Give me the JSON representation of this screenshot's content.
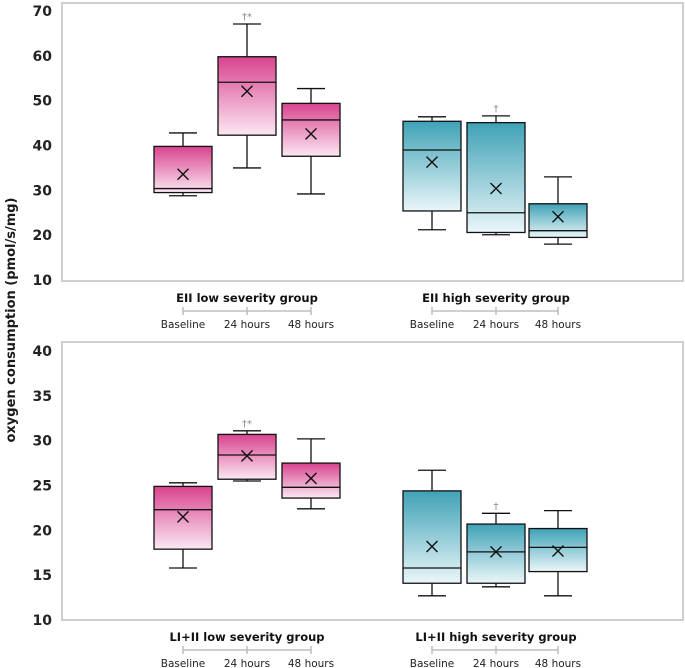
{
  "y_axis_label": "oxygen consumption (pmol/s/mg)",
  "colors": {
    "pink_dark": "#d9438f",
    "pink_light": "#fbe8f2",
    "teal_dark": "#3fa2b6",
    "teal_light": "#eaf6f9",
    "frame": "#cfcfcf",
    "bracket": "#bdbdbd"
  },
  "chart_data": [
    {
      "type": "box",
      "name": "EII",
      "ylim": [
        10,
        70
      ],
      "yticks": [
        10,
        20,
        30,
        40,
        50,
        60,
        70
      ],
      "categories": [
        "Baseline",
        "24 hours",
        "48 hours"
      ],
      "groups": [
        {
          "label": "EII low severity group",
          "scheme": "pink",
          "boxes": [
            {
              "category": "Baseline",
              "min": 28.8,
              "q1": 29.5,
              "median": 30.4,
              "q3": 39.8,
              "max": 42.8,
              "mean": 33.6,
              "annotation": ""
            },
            {
              "category": "24 hours",
              "min": 35.0,
              "q1": 42.3,
              "median": 54.1,
              "q3": 59.8,
              "max": 67.1,
              "mean": 52.1,
              "annotation": "†*"
            },
            {
              "category": "48 hours",
              "min": 29.2,
              "q1": 37.6,
              "median": 45.7,
              "q3": 49.4,
              "max": 52.7,
              "mean": 42.6,
              "annotation": ""
            }
          ]
        },
        {
          "label": "EII high severity group",
          "scheme": "teal",
          "boxes": [
            {
              "category": "Baseline",
              "min": 21.2,
              "q1": 25.4,
              "median": 39.0,
              "q3": 45.4,
              "max": 46.4,
              "mean": 36.3,
              "annotation": ""
            },
            {
              "category": "24 hours",
              "min": 20.1,
              "q1": 20.6,
              "median": 25.0,
              "q3": 45.1,
              "max": 46.6,
              "mean": 30.4,
              "annotation": "†"
            },
            {
              "category": "48 hours",
              "min": 18.0,
              "q1": 19.5,
              "median": 21.0,
              "q3": 27.0,
              "max": 33.0,
              "mean": 24.1,
              "annotation": ""
            }
          ]
        }
      ]
    },
    {
      "type": "box",
      "name": "LI+II",
      "ylim": [
        10,
        40
      ],
      "yticks": [
        10,
        15,
        20,
        25,
        30,
        35,
        40
      ],
      "categories": [
        "Baseline",
        "24 hours",
        "48 hours"
      ],
      "groups": [
        {
          "label": "LI+II low severity group",
          "scheme": "pink",
          "boxes": [
            {
              "category": "Baseline",
              "min": 15.8,
              "q1": 17.9,
              "median": 22.3,
              "q3": 24.9,
              "max": 25.3,
              "mean": 21.5,
              "annotation": ""
            },
            {
              "category": "24 hours",
              "min": 25.5,
              "q1": 25.7,
              "median": 28.4,
              "q3": 30.7,
              "max": 31.1,
              "mean": 28.3,
              "annotation": "†*"
            },
            {
              "category": "48 hours",
              "min": 22.4,
              "q1": 23.6,
              "median": 24.8,
              "q3": 27.5,
              "max": 30.2,
              "mean": 25.8,
              "annotation": ""
            }
          ]
        },
        {
          "label": "LI+II high severity group",
          "scheme": "teal",
          "boxes": [
            {
              "category": "Baseline",
              "min": 12.7,
              "q1": 14.1,
              "median": 15.8,
              "q3": 24.4,
              "max": 26.7,
              "mean": 18.2,
              "annotation": ""
            },
            {
              "category": "24 hours",
              "min": 13.7,
              "q1": 14.1,
              "median": 17.6,
              "q3": 20.7,
              "max": 21.9,
              "mean": 17.6,
              "annotation": "†"
            },
            {
              "category": "48 hours",
              "min": 12.7,
              "q1": 15.4,
              "median": 18.1,
              "q3": 20.2,
              "max": 22.2,
              "mean": 17.7,
              "annotation": ""
            }
          ]
        }
      ]
    }
  ]
}
